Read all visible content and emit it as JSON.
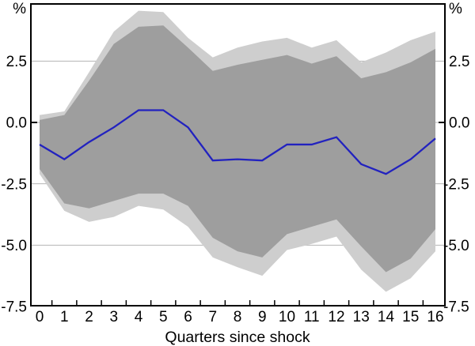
{
  "chart_data": {
    "type": "area",
    "title": "",
    "xlabel": "Quarters since shock",
    "axis_unit_left": "%",
    "axis_unit_right": "%",
    "x": [
      0,
      1,
      2,
      3,
      4,
      5,
      6,
      7,
      8,
      9,
      10,
      11,
      12,
      13,
      14,
      15,
      16
    ],
    "y_ticks": [
      {
        "label": "2.5",
        "value": 2.5
      },
      {
        "label": "0.0",
        "value": 0.0
      },
      {
        "label": "-2.5",
        "value": -2.5
      },
      {
        "label": "-5.0",
        "value": -5.0
      },
      {
        "label": "-7.5",
        "value": -7.5
      }
    ],
    "grid_values": [
      2.5,
      0.0,
      -2.5,
      -5.0
    ],
    "ylim": [
      -7.5,
      4.85
    ],
    "xlim": [
      -0.4,
      16.4
    ],
    "legend": "none",
    "grid": "on",
    "series": [
      {
        "name": "outer-band",
        "type": "band",
        "color": "#cecece",
        "upper": [
          0.3,
          0.45,
          2.05,
          3.7,
          4.55,
          4.5,
          3.45,
          2.65,
          3.05,
          3.3,
          3.45,
          3.05,
          3.35,
          2.45,
          2.85,
          3.35,
          3.7
        ],
        "lower": [
          -2.1,
          -3.6,
          -4.05,
          -3.85,
          -3.4,
          -3.55,
          -4.25,
          -5.5,
          -5.9,
          -6.25,
          -5.2,
          -4.95,
          -4.65,
          -6.0,
          -6.9,
          -6.35,
          -5.25
        ]
      },
      {
        "name": "inner-band",
        "type": "band",
        "color": "#9e9e9e",
        "upper": [
          0.1,
          0.3,
          1.7,
          3.2,
          3.9,
          3.95,
          3.05,
          2.1,
          2.35,
          2.55,
          2.75,
          2.4,
          2.7,
          1.8,
          2.05,
          2.45,
          3.0
        ],
        "lower": [
          -1.9,
          -3.3,
          -3.5,
          -3.2,
          -2.9,
          -2.9,
          -3.4,
          -4.7,
          -5.25,
          -5.5,
          -4.55,
          -4.25,
          -3.95,
          -5.05,
          -6.1,
          -5.55,
          -4.35
        ]
      },
      {
        "name": "response-line",
        "type": "line",
        "color": "#2222bf",
        "values": [
          -0.9,
          -1.5,
          -0.8,
          -0.2,
          0.5,
          0.5,
          -0.2,
          -1.55,
          -1.5,
          -1.55,
          -0.9,
          -0.9,
          -0.6,
          -1.7,
          -2.1,
          -1.5,
          -0.65
        ]
      }
    ],
    "colors": {
      "frame": "#000000",
      "grid": "#b4b4b4",
      "background": "#ffffff"
    }
  }
}
